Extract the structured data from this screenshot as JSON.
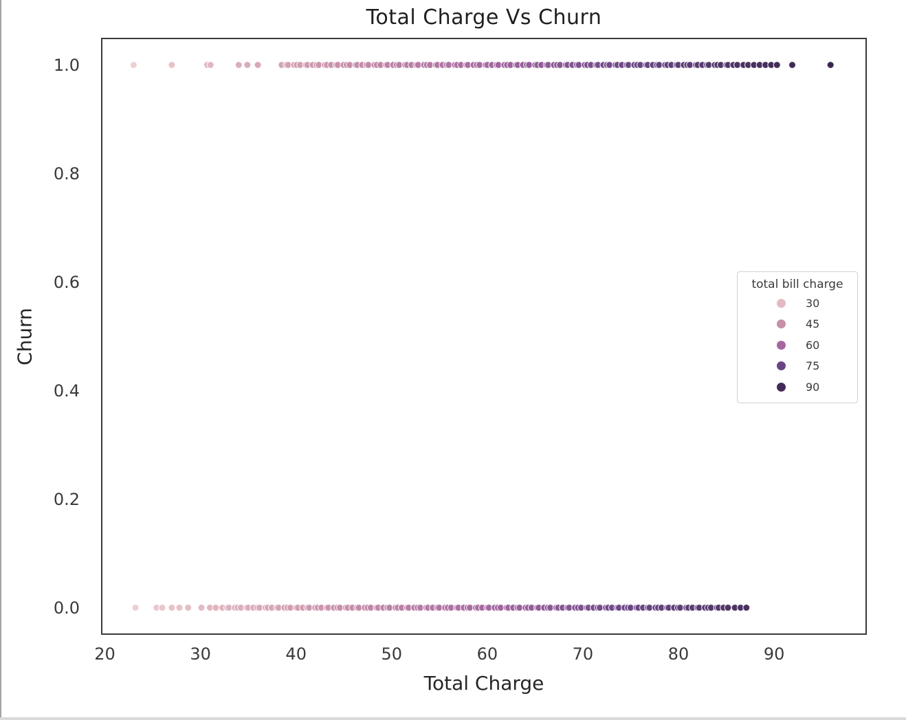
{
  "window": {
    "left_border_color": "#a3a3a3",
    "bottom_strip_color": "#d9d9d9",
    "background": "#ffffff"
  },
  "chart_data": {
    "type": "scatter",
    "title": "Total Charge Vs Churn",
    "xlabel": "Total Charge",
    "ylabel": "Churn",
    "xlim": [
      19.6,
      99.7
    ],
    "ylim": [
      -0.05,
      1.05
    ],
    "x_ticks": [
      20,
      30,
      40,
      50,
      60,
      70,
      80,
      90
    ],
    "y_ticks": [
      {
        "value": 1.0,
        "label": "1.0"
      },
      {
        "value": 0.8,
        "label": "0.8"
      },
      {
        "value": 0.6,
        "label": "0.6"
      },
      {
        "value": 0.4,
        "label": "0.4"
      },
      {
        "value": 0.2,
        "label": "0.2"
      },
      {
        "value": 0.0,
        "label": "0.0"
      }
    ],
    "grid": false,
    "spine_color": "#3a3a3a",
    "marker": {
      "radius_px": 5,
      "edge_color": "rgba(255,255,255,0.8)",
      "edge_width": 1.2
    },
    "hue": {
      "name": "total bill charge",
      "stops": [
        [
          23,
          "#ecd0d1"
        ],
        [
          30,
          "#e3bac2"
        ],
        [
          45,
          "#c78fa9"
        ],
        [
          60,
          "#a667a1"
        ],
        [
          75,
          "#6a4585"
        ],
        [
          90,
          "#432c58"
        ],
        [
          97,
          "#38254c"
        ]
      ]
    },
    "legend": {
      "title": "total bill charge",
      "position": "center right",
      "entries": [
        {
          "label": "30",
          "value": 30,
          "color": "#e3bac2"
        },
        {
          "label": "45",
          "value": 45,
          "color": "#c78fa9"
        },
        {
          "label": "60",
          "value": 60,
          "color": "#a667a1"
        },
        {
          "label": "75",
          "value": 75,
          "color": "#6a4585"
        },
        {
          "label": "90",
          "value": 90,
          "color": "#432c58"
        }
      ]
    },
    "series": [
      {
        "name": "churn=1",
        "y": 1.0,
        "sparse_x": [
          23.0,
          27.0,
          30.7,
          31.05,
          34.0,
          34.9,
          36.0
        ],
        "dense_segments": [
          {
            "from": 38.5,
            "to": 86.2,
            "step": 0.4,
            "jitter_amp": 0.13,
            "jitter_freq": 2.399
          }
        ],
        "tail_x": [
          86.8,
          87.3,
          87.9,
          88.5,
          89.1,
          89.7,
          90.3,
          91.9,
          95.9
        ]
      },
      {
        "name": "churn=0",
        "y": 0.0,
        "sparse_x": [
          23.2,
          25.4,
          26.0,
          27.0,
          27.8,
          28.7,
          30.1,
          31.0,
          31.6
        ],
        "dense_segments": [
          {
            "from": 32.3,
            "to": 85.0,
            "step": 0.4,
            "jitter_amp": 0.13,
            "jitter_freq": 2.399
          }
        ],
        "tail_x": [
          85.9,
          86.5,
          87.1
        ]
      }
    ]
  }
}
